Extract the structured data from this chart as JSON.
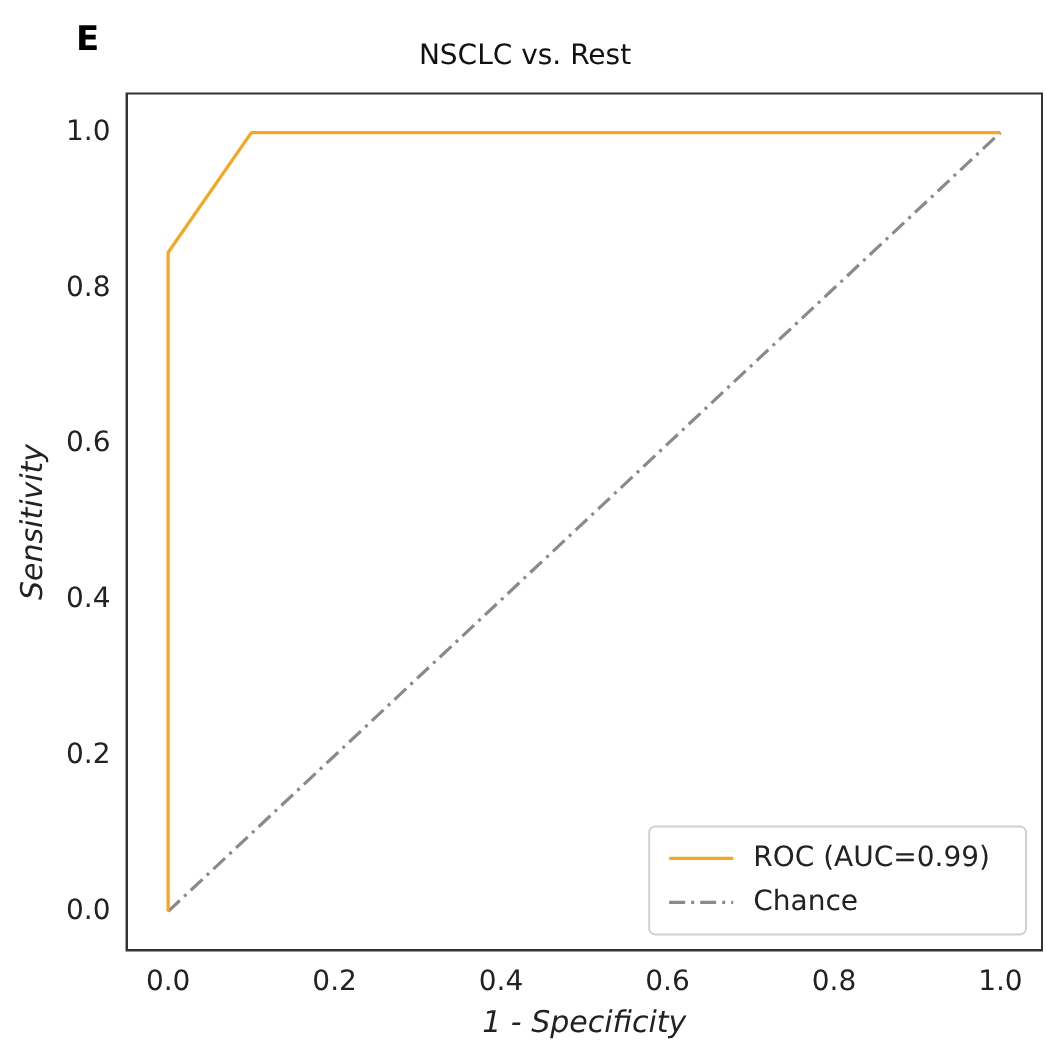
{
  "chart_data": {
    "type": "line",
    "title": "NSCLC vs. Rest",
    "xlabel": "1 - Specificity",
    "ylabel": "Sensitivity",
    "annotations": [
      "E"
    ],
    "xlim": [
      -0.05,
      1.05
    ],
    "ylim": [
      -0.05,
      1.05
    ],
    "xticks": [
      {
        "value": 0,
        "label": "0.0"
      },
      {
        "value": 0.2,
        "label": "0.2"
      },
      {
        "value": 0.4,
        "label": "0.4"
      },
      {
        "value": 0.6,
        "label": "0.6"
      },
      {
        "value": 0.8,
        "label": "0.8"
      },
      {
        "value": 1,
        "label": "1.0"
      }
    ],
    "yticks": [
      {
        "value": 0,
        "label": "0.0"
      },
      {
        "value": 0.2,
        "label": "0.2"
      },
      {
        "value": 0.4,
        "label": "0.4"
      },
      {
        "value": 0.6,
        "label": "0.6"
      },
      {
        "value": 0.8,
        "label": "0.8"
      },
      {
        "value": 1,
        "label": "1.0"
      }
    ],
    "grid": false,
    "legend": "bottom right",
    "marker": "none",
    "series": [
      {
        "name": "ROC (AUC=0.99)",
        "color": "#f5a623",
        "x": [
          0,
          0,
          0.1,
          1
        ],
        "values": [
          0,
          0.846,
          1,
          1
        ],
        "line_style": "solid"
      },
      {
        "name": "Chance",
        "color": "#8a8a8a",
        "x": [
          0,
          1
        ],
        "values": [
          0,
          1
        ],
        "line_style": "dashed"
      }
    ]
  }
}
